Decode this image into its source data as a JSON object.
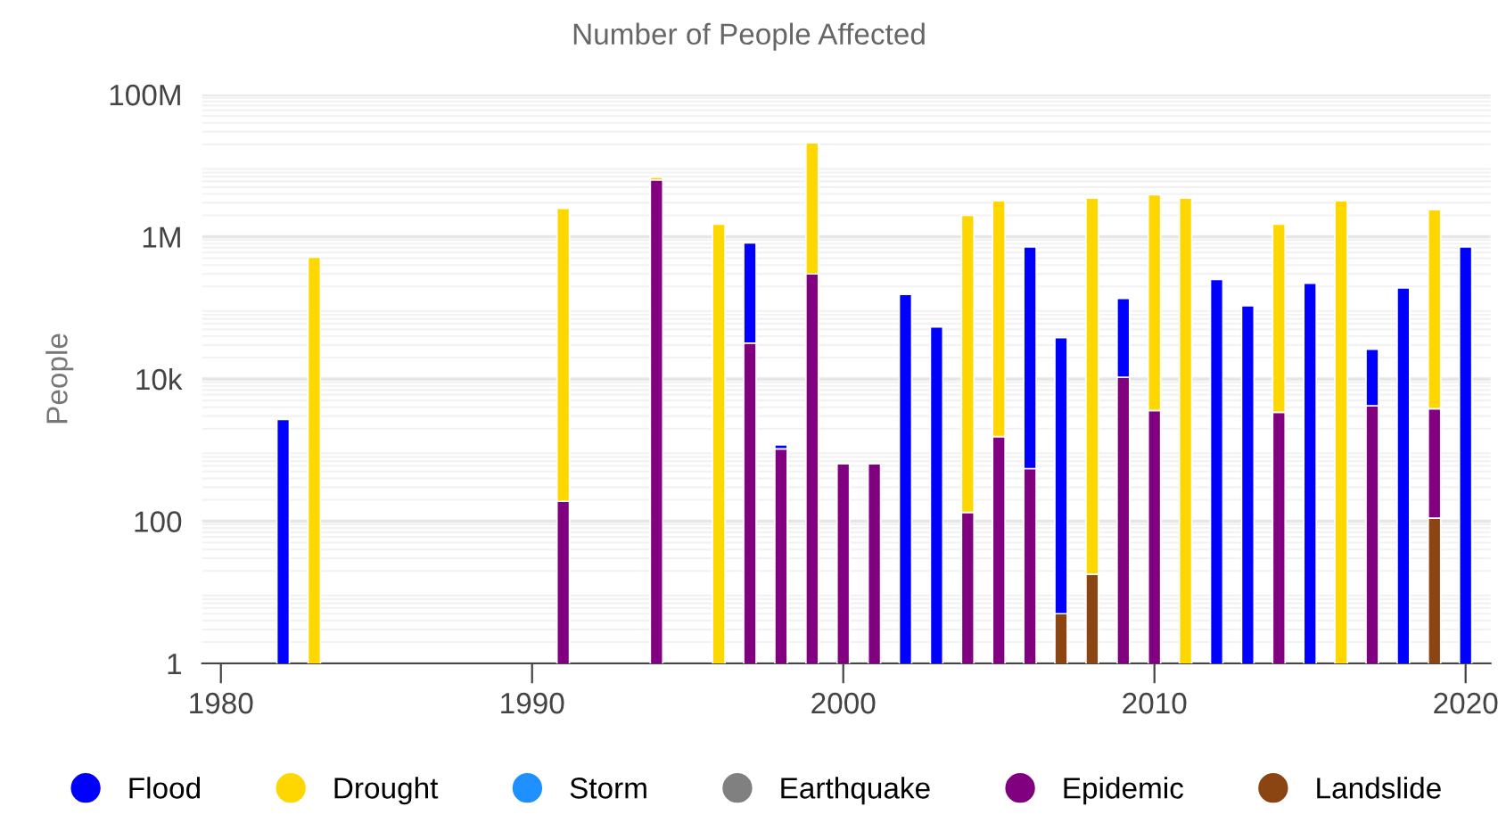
{
  "chart_data": {
    "type": "bar",
    "title": "Number of People Affected",
    "ylabel": "People",
    "stacked": true,
    "log": "y",
    "grid": "y",
    "legend": "bottom",
    "marker": "circle",
    "x": [
      1982,
      1983,
      1991,
      1994,
      1996,
      1997,
      1998,
      1999,
      2000,
      2001,
      2002,
      2003,
      2004,
      2005,
      2006,
      2007,
      2008,
      2009,
      2010,
      2011,
      2012,
      2013,
      2014,
      2015,
      2016,
      2017,
      2018,
      2019,
      2020
    ],
    "xlim": [
      1979.4,
      2020.8
    ],
    "xticks": [
      1980,
      1990,
      2000,
      2010,
      2020
    ],
    "ylim": [
      1,
      100000000
    ],
    "yticks": [
      1,
      100,
      {
        "value": 10000,
        "label": "10k"
      },
      {
        "value": 1000000,
        "label": "1M"
      },
      {
        "value": 100000000,
        "label": "100M"
      }
    ],
    "series": [
      {
        "name": "Landslide",
        "color": "#8b4513",
        "values": [
          null,
          null,
          null,
          null,
          null,
          null,
          null,
          null,
          null,
          null,
          null,
          null,
          null,
          null,
          null,
          5,
          18,
          null,
          null,
          null,
          null,
          null,
          null,
          null,
          null,
          null,
          null,
          110,
          null
        ]
      },
      {
        "name": "Epidemic",
        "color": "#800080",
        "values": [
          null,
          null,
          190,
          6300000,
          null,
          32000,
          1040,
          300000,
          640,
          640,
          null,
          null,
          133,
          1550,
          550,
          null,
          null,
          10600,
          3600,
          null,
          null,
          null,
          3400,
          null,
          null,
          4200,
          null,
          3700,
          null
        ]
      },
      {
        "name": "Earthquake",
        "color": "#808080",
        "values": [
          null,
          null,
          null,
          null,
          null,
          null,
          null,
          null,
          null,
          null,
          null,
          null,
          null,
          null,
          null,
          null,
          null,
          null,
          null,
          null,
          null,
          null,
          null,
          null,
          null,
          null,
          null,
          null,
          null
        ]
      },
      {
        "name": "Storm",
        "color": "#1e90ff",
        "values": [
          null,
          null,
          null,
          null,
          null,
          null,
          null,
          null,
          null,
          null,
          null,
          null,
          null,
          null,
          null,
          null,
          null,
          null,
          null,
          null,
          null,
          null,
          null,
          null,
          null,
          null,
          null,
          null,
          null
        ]
      },
      {
        "name": "Drought",
        "color": "#ffd700",
        "values": [
          null,
          515000,
          2500000,
          600000,
          1500000,
          null,
          null,
          20700000,
          null,
          null,
          null,
          null,
          2000000,
          3200000,
          null,
          null,
          3500000,
          null,
          3900000,
          3500000,
          null,
          null,
          1500000,
          null,
          3200000,
          null,
          null,
          2400000,
          null
        ]
      },
      {
        "name": "Flood",
        "color": "#0000ff",
        "values": [
          2700,
          null,
          null,
          null,
          null,
          790000,
          140,
          null,
          null,
          null,
          155000,
          54000,
          null,
          null,
          720000,
          38000,
          null,
          125000,
          null,
          null,
          250000,
          107000,
          null,
          222000,
          null,
          22000,
          190000,
          null,
          720000
        ]
      }
    ]
  }
}
